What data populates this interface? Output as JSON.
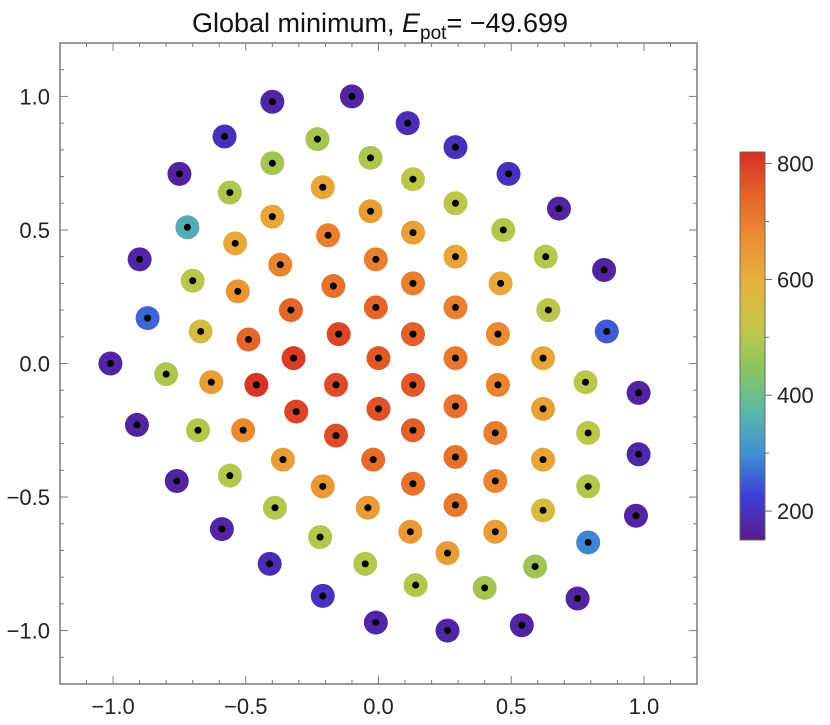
{
  "chart_data": {
    "type": "scatter",
    "title": {
      "prefix": "Global minimum, ",
      "symbol": "E",
      "subscript": "pot",
      "suffix": "= −49.699"
    },
    "xlabel": "",
    "ylabel": "",
    "xlim": [
      -1.2,
      1.2
    ],
    "ylim": [
      -1.2,
      1.2
    ],
    "x_ticks": [
      {
        "value": -1.0,
        "label": "−1.0"
      },
      {
        "value": -0.5,
        "label": "−0.5"
      },
      {
        "value": 0.0,
        "label": "0.0"
      },
      {
        "value": 0.5,
        "label": "0.5"
      },
      {
        "value": 1.0,
        "label": "1.0"
      }
    ],
    "y_ticks": [
      {
        "value": 1.0,
        "label": "1.0"
      },
      {
        "value": 0.5,
        "label": "0.5"
      },
      {
        "value": 0.0,
        "label": "0.0"
      },
      {
        "value": -0.5,
        "label": "−0.5"
      },
      {
        "value": -1.0,
        "label": "−1.0"
      }
    ],
    "colorbar": {
      "min": 150,
      "max": 820,
      "ticks": [
        {
          "value": 800,
          "label": "800"
        },
        {
          "value": 600,
          "label": "600"
        },
        {
          "value": 400,
          "label": "400"
        },
        {
          "value": 200,
          "label": "200"
        }
      ],
      "colors": [
        "#5b1a8c",
        "#3d3ed6",
        "#3f8fd3",
        "#5cb8a4",
        "#8cc55d",
        "#c6c646",
        "#e6b03c",
        "#eb8f32",
        "#e4632a",
        "#d62f24"
      ]
    },
    "grid": false,
    "points": [
      [
        -0.1,
        1.0,
        170
      ],
      [
        -0.4,
        0.98,
        175
      ],
      [
        0.11,
        0.9,
        190
      ],
      [
        -0.58,
        0.85,
        195
      ],
      [
        -0.23,
        0.84,
        480
      ],
      [
        0.29,
        0.81,
        195
      ],
      [
        -0.4,
        0.75,
        480
      ],
      [
        -0.03,
        0.77,
        490
      ],
      [
        0.13,
        0.69,
        510
      ],
      [
        0.49,
        0.71,
        200
      ],
      [
        -0.75,
        0.71,
        170
      ],
      [
        -0.56,
        0.64,
        490
      ],
      [
        -0.21,
        0.66,
        620
      ],
      [
        0.29,
        0.6,
        510
      ],
      [
        0.68,
        0.58,
        170
      ],
      [
        -0.4,
        0.55,
        620
      ],
      [
        -0.03,
        0.57,
        640
      ],
      [
        0.13,
        0.49,
        630
      ],
      [
        0.47,
        0.5,
        500
      ],
      [
        -0.72,
        0.51,
        350
      ],
      [
        -0.54,
        0.45,
        610
      ],
      [
        -0.19,
        0.48,
        700
      ],
      [
        0.29,
        0.4,
        620
      ],
      [
        0.63,
        0.4,
        500
      ],
      [
        -0.9,
        0.39,
        175
      ],
      [
        -0.37,
        0.37,
        690
      ],
      [
        -0.01,
        0.39,
        700
      ],
      [
        0.85,
        0.35,
        170
      ],
      [
        0.13,
        0.3,
        700
      ],
      [
        0.46,
        0.3,
        610
      ],
      [
        -0.7,
        0.31,
        510
      ],
      [
        -0.53,
        0.27,
        660
      ],
      [
        -0.17,
        0.29,
        720
      ],
      [
        0.29,
        0.21,
        700
      ],
      [
        0.64,
        0.2,
        510
      ],
      [
        -0.33,
        0.2,
        740
      ],
      [
        -0.01,
        0.21,
        740
      ],
      [
        -0.87,
        0.17,
        260
      ],
      [
        0.86,
        0.12,
        250
      ],
      [
        0.13,
        0.11,
        750
      ],
      [
        0.45,
        0.11,
        680
      ],
      [
        -0.67,
        0.12,
        560
      ],
      [
        -0.49,
        0.09,
        740
      ],
      [
        -0.15,
        0.11,
        790
      ],
      [
        0.29,
        0.02,
        710
      ],
      [
        0.62,
        0.02,
        620
      ],
      [
        -0.32,
        0.02,
        800
      ],
      [
        0.0,
        0.02,
        760
      ],
      [
        -1.01,
        0.0,
        175
      ],
      [
        -0.8,
        -0.04,
        490
      ],
      [
        -0.63,
        -0.07,
        640
      ],
      [
        -0.46,
        -0.08,
        810
      ],
      [
        -0.16,
        -0.08,
        780
      ],
      [
        0.13,
        -0.08,
        760
      ],
      [
        0.45,
        -0.08,
        690
      ],
      [
        0.78,
        -0.07,
        510
      ],
      [
        0.98,
        -0.11,
        170
      ],
      [
        -0.31,
        -0.18,
        790
      ],
      [
        0.0,
        -0.17,
        770
      ],
      [
        0.29,
        -0.16,
        720
      ],
      [
        0.62,
        -0.17,
        630
      ],
      [
        -0.91,
        -0.23,
        170
      ],
      [
        -0.68,
        -0.25,
        500
      ],
      [
        -0.51,
        -0.25,
        680
      ],
      [
        -0.16,
        -0.27,
        780
      ],
      [
        0.13,
        -0.25,
        750
      ],
      [
        0.44,
        -0.26,
        700
      ],
      [
        0.79,
        -0.26,
        510
      ],
      [
        -0.36,
        -0.36,
        640
      ],
      [
        -0.02,
        -0.36,
        730
      ],
      [
        0.29,
        -0.35,
        720
      ],
      [
        0.62,
        -0.36,
        620
      ],
      [
        0.98,
        -0.34,
        175
      ],
      [
        -0.76,
        -0.44,
        170
      ],
      [
        -0.56,
        -0.42,
        500
      ],
      [
        -0.21,
        -0.46,
        650
      ],
      [
        0.13,
        -0.45,
        720
      ],
      [
        0.44,
        -0.44,
        690
      ],
      [
        0.79,
        -0.46,
        500
      ],
      [
        -0.39,
        -0.54,
        500
      ],
      [
        -0.04,
        -0.54,
        640
      ],
      [
        0.29,
        -0.53,
        710
      ],
      [
        0.62,
        -0.55,
        560
      ],
      [
        0.97,
        -0.57,
        175
      ],
      [
        -0.59,
        -0.62,
        175
      ],
      [
        -0.22,
        -0.65,
        500
      ],
      [
        0.12,
        -0.63,
        650
      ],
      [
        0.44,
        -0.63,
        640
      ],
      [
        0.26,
        -0.71,
        640
      ],
      [
        0.79,
        -0.67,
        290
      ],
      [
        -0.41,
        -0.75,
        190
      ],
      [
        -0.05,
        -0.75,
        500
      ],
      [
        0.59,
        -0.76,
        470
      ],
      [
        0.14,
        -0.83,
        500
      ],
      [
        0.4,
        -0.84,
        480
      ],
      [
        -0.21,
        -0.87,
        200
      ],
      [
        0.75,
        -0.88,
        170
      ],
      [
        -0.01,
        -0.97,
        175
      ],
      [
        0.26,
        -1.0,
        175
      ],
      [
        0.54,
        -0.98,
        170
      ]
    ]
  }
}
